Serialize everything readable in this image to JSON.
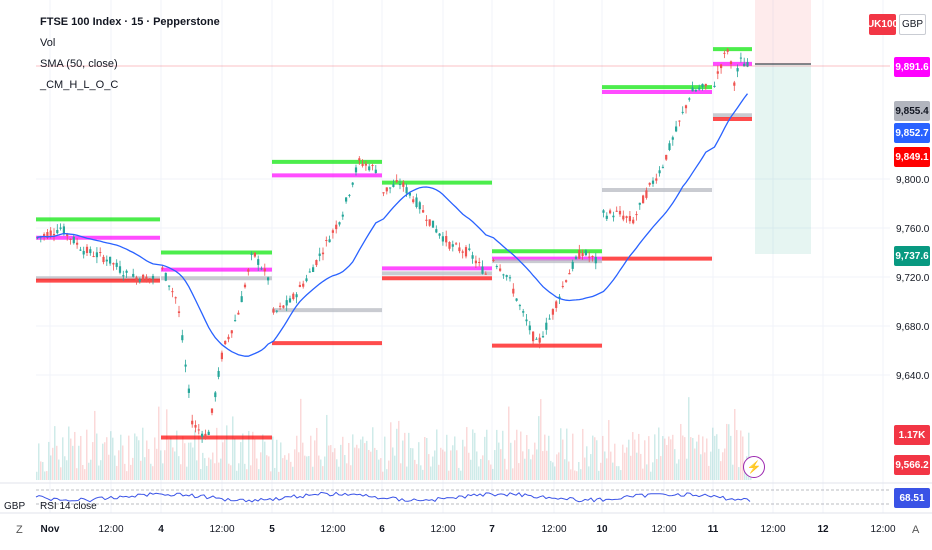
{
  "legend": {
    "title": "FTSE 100 Index · 15 · Pepperstone",
    "vol": "Vol",
    "sma": "SMA (50, close)",
    "cm": "_CM_H_L_O_C"
  },
  "badges": {
    "symbol": "UK100",
    "currency": "GBP"
  },
  "price_labels": [
    {
      "text": "9,891.6",
      "bg": "#ff00ff",
      "fg": "#ffffff",
      "price": 9891.6
    },
    {
      "text": "9,855.4",
      "bg": "#b2b5be",
      "fg": "#131722",
      "price": 9855.4
    },
    {
      "text": "9,852.7",
      "bg": "#2962ff",
      "fg": "#ffffff",
      "price": 9852.7
    },
    {
      "text": "9,849.1",
      "bg": "#ff0000",
      "fg": "#ffffff",
      "price": 9849.1
    },
    {
      "text": "9,737.6",
      "bg": "#089981",
      "fg": "#ffffff",
      "price": 9737.6
    }
  ],
  "volume_labels": [
    {
      "text": "1.17K",
      "bg": "#f23645",
      "fg": "#ffffff"
    },
    {
      "text": "9,566.2",
      "bg": "#f23645",
      "fg": "#ffffff"
    }
  ],
  "rsi": {
    "label": "RSI 14 close",
    "value": "68.51",
    "bg": "#3a53e6",
    "left_text": "GBP"
  },
  "axis": {
    "y_ticks": [
      "9,800.0",
      "9,760.0",
      "9,720.0",
      "9,680.0",
      "9,640.0"
    ],
    "x_ticks": [
      "Nov",
      "12:00",
      "4",
      "12:00",
      "5",
      "12:00",
      "6",
      "12:00",
      "7",
      "12:00",
      "10",
      "12:00",
      "11",
      "12:00",
      "12",
      "12:00"
    ],
    "z_label": "Z",
    "a_label": "A"
  },
  "colors": {
    "up": "#26a69a",
    "down": "#ef5350",
    "sma": "#2962ff",
    "green": "#00e600",
    "magenta": "#ff00ff",
    "red": "#ff0000",
    "gray": "#b2b5be"
  },
  "chart_data": {
    "type": "candlestick",
    "y_range": [
      9630,
      9920
    ],
    "days": [
      "3 Nov",
      "4 Nov",
      "5 Nov",
      "6 Nov",
      "7 Nov",
      "10 Nov",
      "11 Nov"
    ],
    "daily_levels": [
      {
        "day": "3 Nov",
        "high": 9767,
        "open": 9752,
        "close": 9719,
        "low": 9717
      },
      {
        "day": "4 Nov",
        "high": 9740,
        "open": 9726,
        "close": 9719,
        "low": 9589
      },
      {
        "day": "5 Nov",
        "high": 9814,
        "open": 9803,
        "close": 9693,
        "low": 9666
      },
      {
        "day": "6 Nov",
        "high": 9797,
        "open": 9727,
        "close": 9723,
        "low": 9719
      },
      {
        "day": "7 Nov",
        "high": 9741,
        "open": 9735,
        "close": 9733,
        "low": 9664
      },
      {
        "day": "10 Nov",
        "high": 9875,
        "open": 9871,
        "close": 9791,
        "low": 9735
      },
      {
        "day": "11 Nov",
        "high": 9906,
        "open": 9894,
        "close": 9852,
        "low": 9849
      }
    ],
    "sma_50_last": 9852.7,
    "last_price": 9891.6
  }
}
